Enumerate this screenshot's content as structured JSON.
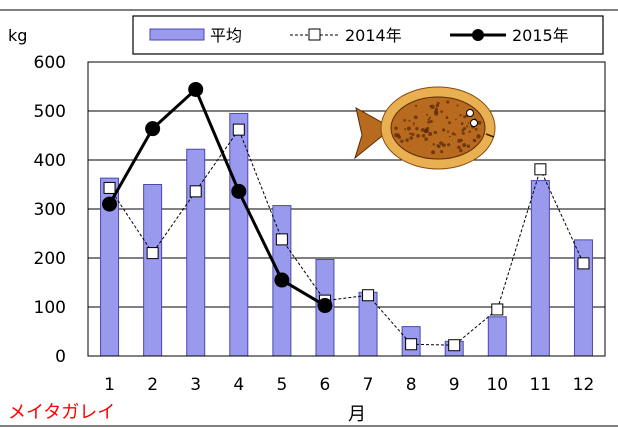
{
  "chart_data": {
    "type": "bar",
    "categories": [
      "1",
      "2",
      "3",
      "4",
      "5",
      "6",
      "7",
      "8",
      "9",
      "10",
      "11",
      "12"
    ],
    "series": [
      {
        "name": "平均",
        "type": "bar",
        "color": "#9999ee",
        "values": [
          363,
          350,
          422,
          495,
          307,
          197,
          130,
          60,
          30,
          80,
          358,
          237
        ]
      },
      {
        "name": "2014年",
        "type": "line",
        "style": "dashed",
        "marker": "open-square",
        "color": "#000000",
        "values": [
          343,
          210,
          336,
          462,
          238,
          113,
          124,
          24,
          22,
          95,
          381,
          189
        ]
      },
      {
        "name": "2015年",
        "type": "line",
        "style": "solid-bold",
        "marker": "filled-circle",
        "color": "#000000",
        "values": [
          310,
          464,
          544,
          336,
          155,
          103,
          null,
          null,
          null,
          null,
          null,
          null
        ]
      }
    ],
    "ylabel": "kg",
    "xlabel": "月",
    "ylim": [
      0,
      600
    ],
    "yticks": [
      0,
      100,
      200,
      300,
      400,
      500,
      600
    ],
    "grid": true,
    "legend": "top",
    "annotation": "メイタガレイ",
    "annotation_color": "#ff0000"
  },
  "illustration": {
    "name": "flounder-fish",
    "body_color": "#b86a1e",
    "fin_color": "#e8b050",
    "spot_color": "#5a2a08"
  }
}
